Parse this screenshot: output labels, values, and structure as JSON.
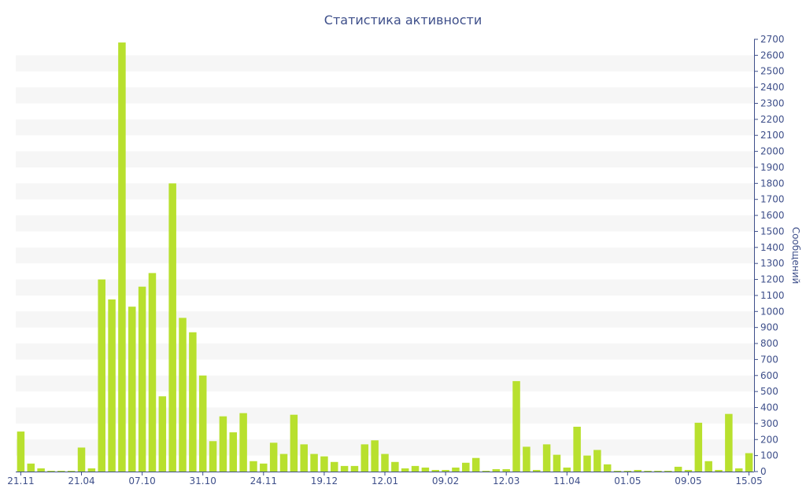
{
  "chart_data": {
    "type": "bar",
    "title": "Статистика активности",
    "ylabel": "Сообщений",
    "xlabel": "",
    "ylim": [
      0,
      2700
    ],
    "y_ticks": [
      0,
      100,
      200,
      300,
      400,
      500,
      600,
      700,
      800,
      900,
      1000,
      1100,
      1200,
      1300,
      1400,
      1500,
      1600,
      1700,
      1800,
      1900,
      2000,
      2100,
      2200,
      2300,
      2400,
      2500,
      2600,
      2700
    ],
    "x_tick_labels": [
      {
        "index": 0,
        "label": "21.11"
      },
      {
        "index": 6,
        "label": "21.04"
      },
      {
        "index": 12,
        "label": "07.10"
      },
      {
        "index": 18,
        "label": "31.10"
      },
      {
        "index": 24,
        "label": "24.11"
      },
      {
        "index": 30,
        "label": "19.12"
      },
      {
        "index": 36,
        "label": "12.01"
      },
      {
        "index": 42,
        "label": "09.02"
      },
      {
        "index": 48,
        "label": "12.03"
      },
      {
        "index": 54,
        "label": "11.04"
      },
      {
        "index": 60,
        "label": "01.05"
      },
      {
        "index": 66,
        "label": "09.05"
      },
      {
        "index": 72,
        "label": "15.05"
      }
    ],
    "values": [
      250,
      50,
      20,
      5,
      5,
      5,
      150,
      20,
      1200,
      1075,
      2680,
      1030,
      1155,
      1240,
      470,
      1800,
      960,
      870,
      600,
      190,
      345,
      245,
      365,
      65,
      50,
      180,
      110,
      355,
      170,
      110,
      95,
      60,
      35,
      35,
      170,
      195,
      110,
      60,
      20,
      35,
      25,
      10,
      10,
      25,
      55,
      85,
      5,
      15,
      15,
      565,
      155,
      10,
      170,
      105,
      25,
      280,
      100,
      135,
      45,
      5,
      5,
      10,
      5,
      5,
      5,
      30,
      10,
      305,
      65,
      10,
      360,
      20,
      115
    ],
    "colors": {
      "bar": "#b8e02e",
      "text": "#3e4f8a",
      "band": "#f6f6f6",
      "axis": "#3e4f8a"
    },
    "grid": "alternating-bands",
    "y_axis_position": "right"
  }
}
